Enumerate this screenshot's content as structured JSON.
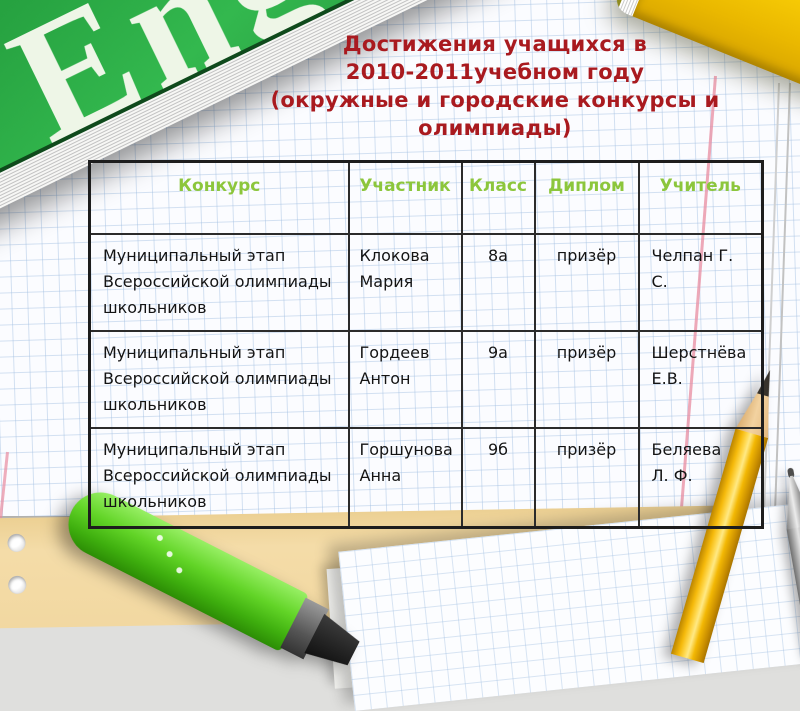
{
  "slide": {
    "title": {
      "lines": [
        "Достижения учащихся в",
        "2010-2011учебном году",
        "(окружные и городские конкурсы и",
        "олимпиады)"
      ]
    }
  },
  "table": {
    "headers": [
      "Конкурс",
      "Участник",
      "Класс",
      "Диплом",
      "Учитель"
    ],
    "rows": [
      [
        "Муниципальный этап Всероссийской олимпиады школьников",
        "Клокова Мария",
        "8а",
        "призёр",
        "Челпан Г. С."
      ],
      [
        "Муниципальный этап Всероссийской олимпиады школьников",
        "Гордеев Антон",
        "9а",
        "призёр",
        "Шерстнёва Е.В."
      ],
      [
        "Муниципальный этап Всероссийской олимпиады школьников",
        "Горшунова Анна",
        "9б",
        "призёр",
        "Беляева Л. Ф."
      ]
    ]
  },
  "decor": {
    "green_book_label": "Eng",
    "colors": {
      "title_red": "#a91a1f",
      "header_green": "#8cc63c",
      "book_green": "#27a341",
      "book_yellow": "#f7cb05",
      "tan_paper": "#f2d8a1",
      "marker_green": "#62d427",
      "pencil_yellow": "#f5b90a",
      "margin_pink": "#e88ca0",
      "grid_blue": "#a0bee1"
    }
  }
}
